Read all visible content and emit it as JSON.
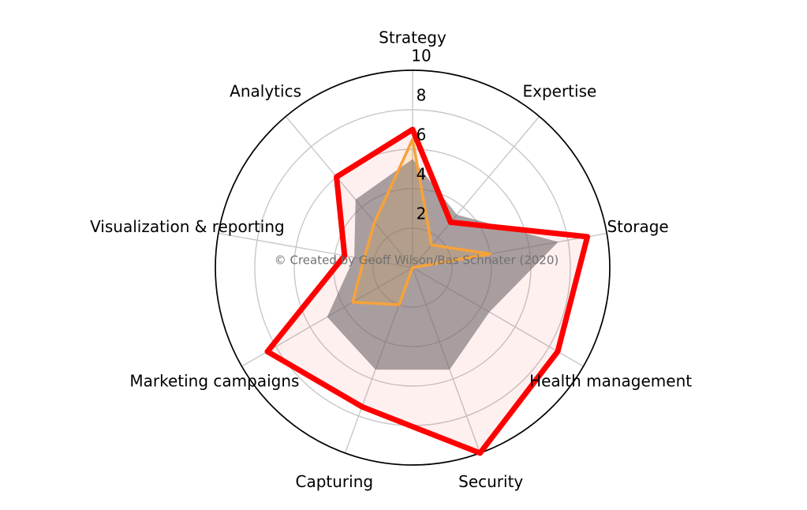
{
  "chart_data": {
    "type": "radar",
    "title": "",
    "categories": [
      "Strategy",
      "Expertise",
      "Storage",
      "Health management",
      "Security",
      "Capturing",
      "Marketing campaigns",
      "Visualization & reporting",
      "Analytics"
    ],
    "rmin": 0,
    "rmax": 10,
    "r_ticks": [
      2,
      4,
      6,
      8,
      10
    ],
    "grid": true,
    "legend": "none",
    "start_angle_deg": 90,
    "direction": "clockwise",
    "annotation": "© Created by Geoff Wilson/Bas Schnater (2020)",
    "series": [
      {
        "name": "red-outline-series",
        "color": "#FF0000",
        "fill": "rgba(255,0,0,0.06)",
        "stroke_width": 7,
        "values": [
          7,
          3,
          9,
          8.5,
          10,
          7.5,
          8.5,
          3.5,
          6
        ]
      },
      {
        "name": "gray-fill-series",
        "color": "none",
        "fill": "rgba(112,104,105,0.6)",
        "stroke_width": 0,
        "values": [
          5.5,
          3.5,
          7.5,
          4.5,
          5.5,
          5.5,
          5,
          3,
          4.5
        ]
      },
      {
        "name": "orange-outline-series",
        "color": "#F7A239",
        "fill": "rgba(255,165,0,0.12)",
        "stroke_width": 3.5,
        "values": [
          6.5,
          1.5,
          4,
          0,
          0,
          2,
          3.5,
          2.5,
          3
        ]
      }
    ],
    "colors": {
      "grid": "#C8C8C8",
      "spine": "#000000",
      "tick_label": "#000000",
      "category_label": "#000000",
      "annotation": "#707070"
    }
  }
}
